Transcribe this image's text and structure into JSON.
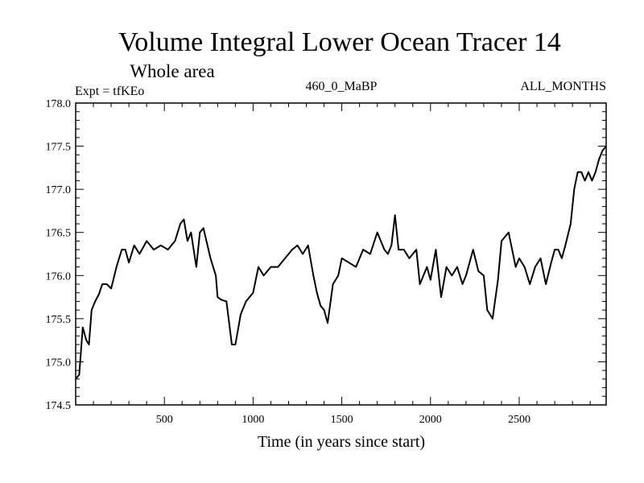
{
  "chart_data": {
    "type": "line",
    "title": "Volume Integral Lower Ocean Tracer 14",
    "subtitle": "Whole area",
    "header_left": "Expt = tfKEo",
    "header_center": "460_0_MaBP",
    "header_right": "ALL_MONTHS",
    "xlabel": "Time (in years since start)",
    "ylabel": "",
    "xlim": [
      0,
      2990
    ],
    "ylim": [
      174.5,
      178.0
    ],
    "x_ticks": [
      500,
      1000,
      1500,
      2000,
      2500
    ],
    "y_ticks": [
      "174.5",
      "175.0",
      "175.5",
      "176.0",
      "176.5",
      "177.0",
      "177.5",
      "178.0"
    ],
    "grid": false,
    "series": [
      {
        "color": "#000000",
        "x": [
          0,
          20,
          40,
          60,
          75,
          90,
          110,
          130,
          150,
          175,
          200,
          230,
          260,
          280,
          300,
          330,
          360,
          400,
          440,
          480,
          520,
          560,
          590,
          610,
          630,
          650,
          680,
          700,
          720,
          760,
          790,
          800,
          820,
          850,
          880,
          900,
          930,
          960,
          1000,
          1030,
          1060,
          1100,
          1140,
          1180,
          1220,
          1250,
          1280,
          1310,
          1340,
          1360,
          1380,
          1400,
          1420,
          1450,
          1480,
          1500,
          1540,
          1580,
          1620,
          1660,
          1700,
          1740,
          1760,
          1780,
          1800,
          1820,
          1850,
          1880,
          1920,
          1940,
          1960,
          1980,
          2000,
          2030,
          2060,
          2090,
          2120,
          2150,
          2180,
          2200,
          2240,
          2270,
          2300,
          2320,
          2350,
          2380,
          2400,
          2440,
          2480,
          2500,
          2530,
          2560,
          2590,
          2620,
          2650,
          2680,
          2700,
          2720,
          2740,
          2760,
          2790,
          2810,
          2830,
          2850,
          2870,
          2890,
          2910,
          2930,
          2950,
          2970,
          2990
        ],
        "values": [
          174.8,
          174.85,
          175.4,
          175.25,
          175.2,
          175.6,
          175.7,
          175.78,
          175.9,
          175.9,
          175.85,
          176.1,
          176.3,
          176.3,
          176.15,
          176.35,
          176.25,
          176.4,
          176.3,
          176.35,
          176.3,
          176.4,
          176.6,
          176.65,
          176.4,
          176.5,
          176.1,
          176.5,
          176.55,
          176.2,
          176.0,
          175.75,
          175.72,
          175.7,
          175.2,
          175.2,
          175.55,
          175.7,
          175.8,
          176.1,
          176.0,
          176.1,
          176.1,
          176.2,
          176.3,
          176.35,
          176.25,
          176.35,
          176.0,
          175.8,
          175.65,
          175.6,
          175.45,
          175.9,
          176.0,
          176.2,
          176.15,
          176.1,
          176.3,
          176.25,
          176.5,
          176.3,
          176.25,
          176.35,
          176.7,
          176.3,
          176.3,
          176.2,
          176.3,
          175.9,
          176.0,
          176.1,
          175.95,
          176.3,
          175.75,
          176.1,
          176.0,
          176.1,
          175.9,
          176.0,
          176.3,
          176.05,
          176.0,
          175.6,
          175.5,
          175.95,
          176.4,
          176.5,
          176.1,
          176.2,
          176.1,
          175.9,
          176.1,
          176.2,
          175.9,
          176.15,
          176.3,
          176.3,
          176.2,
          176.35,
          176.6,
          177.0,
          177.2,
          177.2,
          177.1,
          177.2,
          177.1,
          177.2,
          177.35,
          177.45,
          177.5
        ]
      }
    ]
  }
}
